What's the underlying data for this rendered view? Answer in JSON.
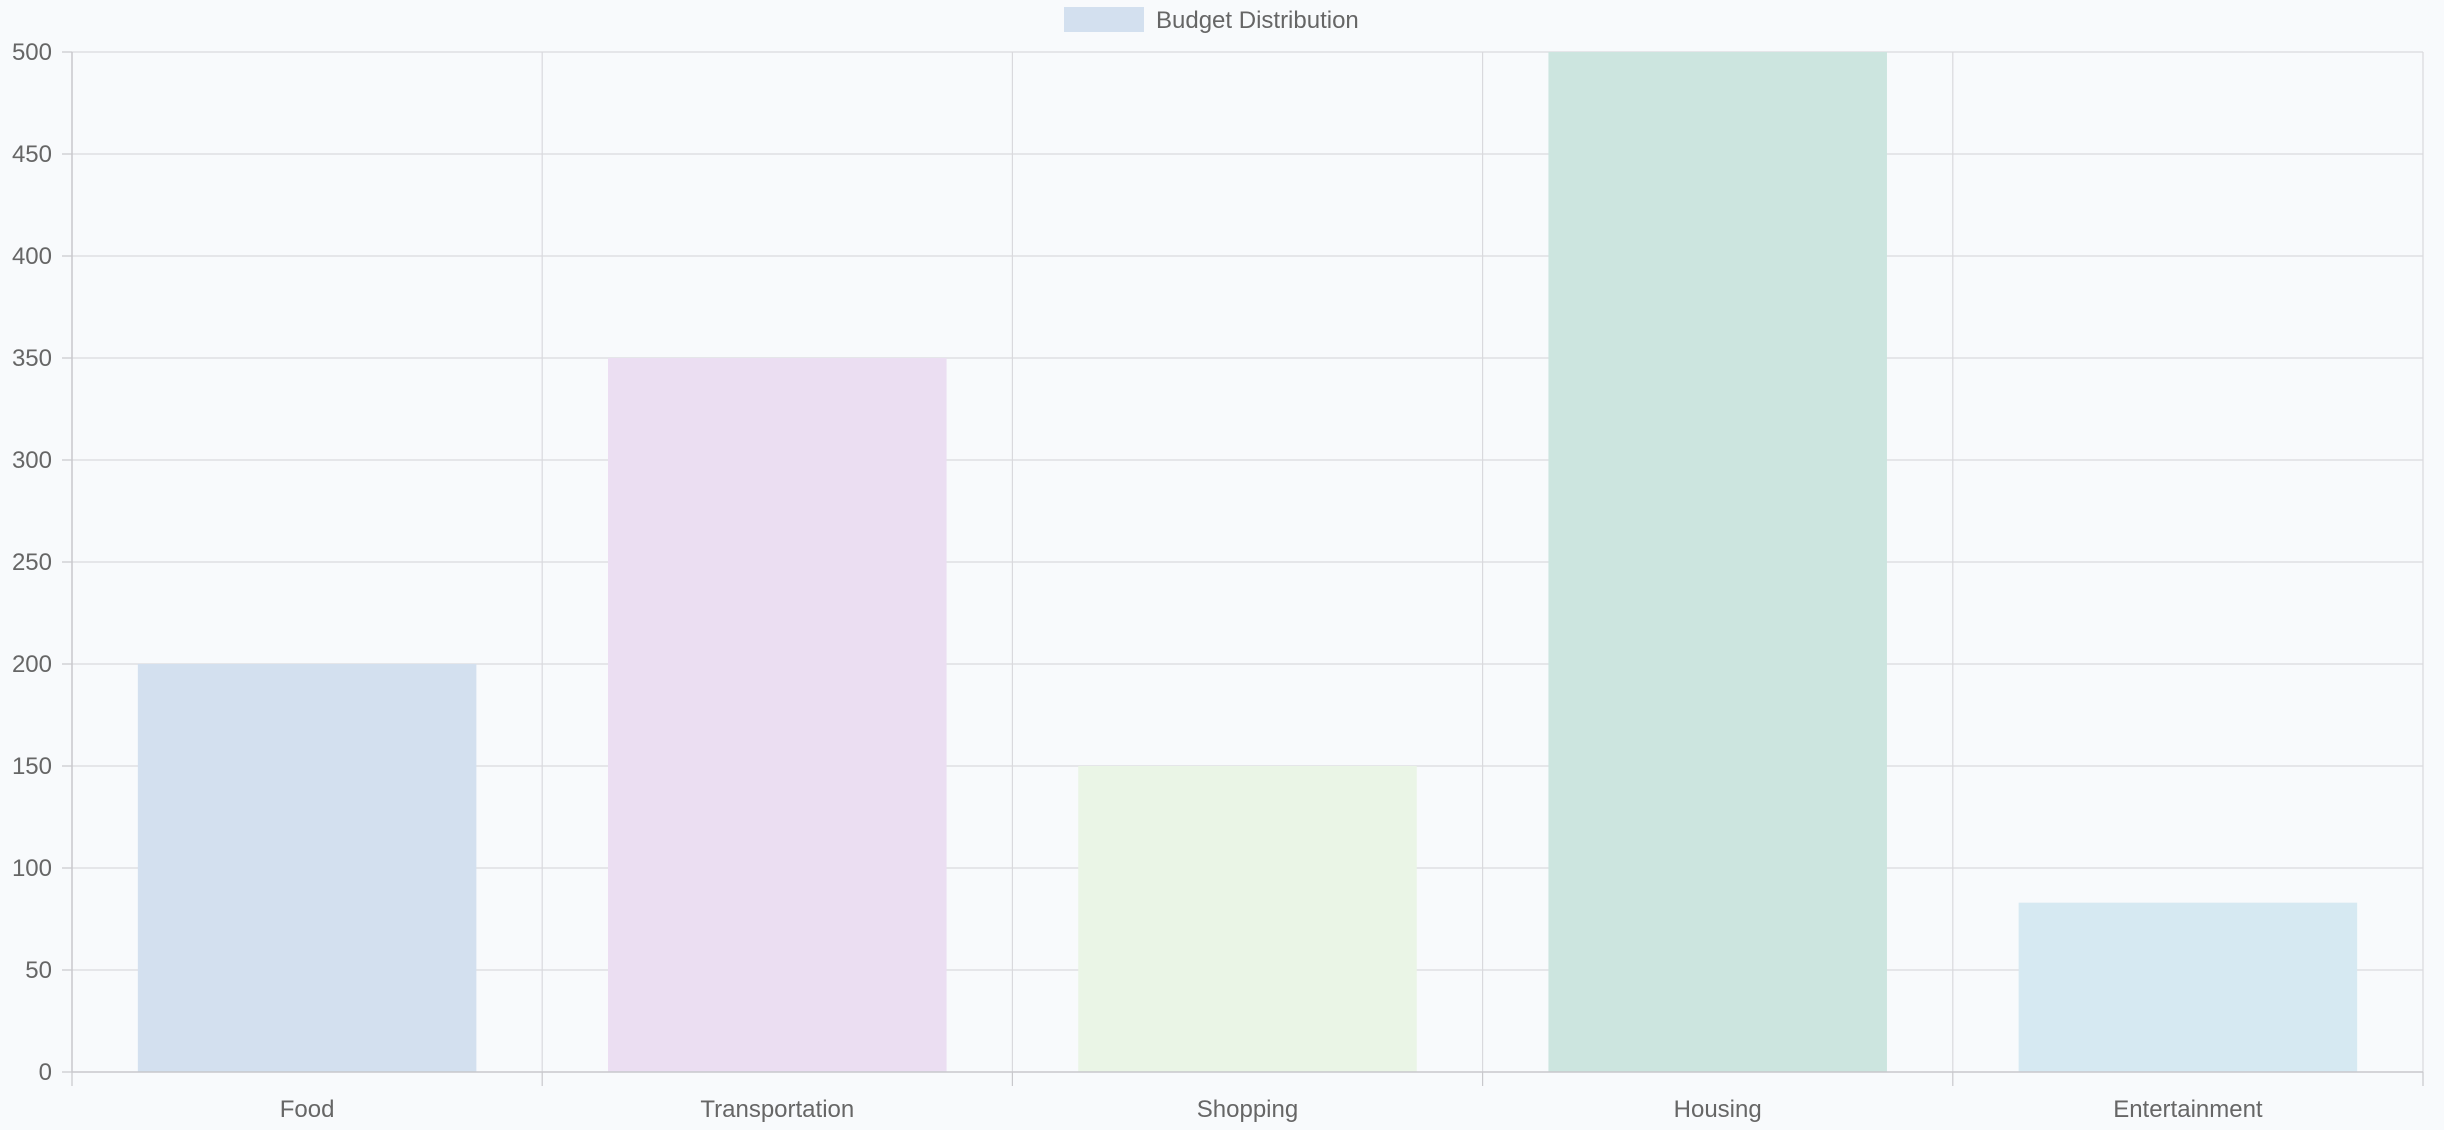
{
  "chart_data": {
    "type": "bar",
    "categories": [
      "Food",
      "Transportation",
      "Shopping",
      "Housing",
      "Entertainment"
    ],
    "series": [
      {
        "name": "Budget Distribution",
        "values": [
          200,
          350,
          150,
          500,
          83
        ],
        "colors": [
          "#d3e0ef",
          "#ebdef2",
          "#eaf5e6",
          "#cce5df",
          "#d6e9f2"
        ]
      }
    ],
    "yticks": [
      0,
      50,
      100,
      150,
      200,
      250,
      300,
      350,
      400,
      450,
      500
    ],
    "ylim": [
      0,
      500
    ],
    "grid": true,
    "legend_position": "top-center",
    "legend_color": "#d3e0ef",
    "grid_color": "#d9d9dd",
    "axis_color": "#c8c8cc"
  }
}
